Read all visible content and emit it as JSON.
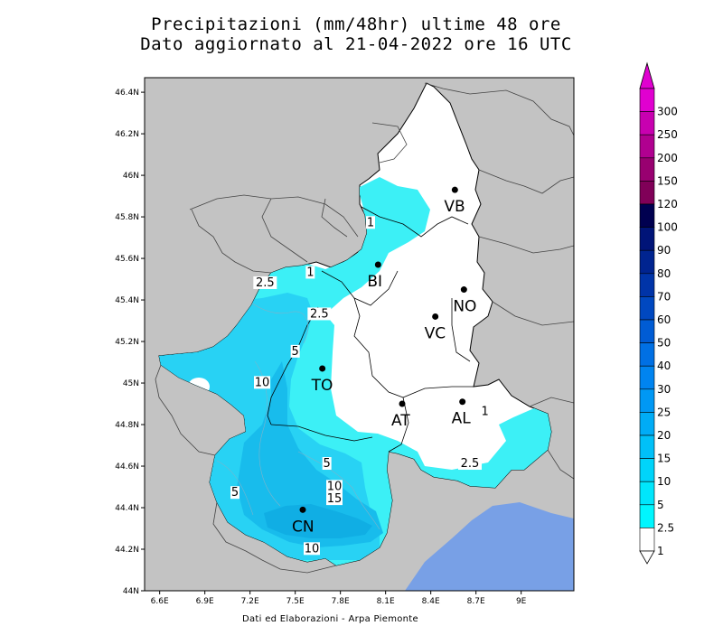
{
  "header": {
    "title_line1": "Precipitazioni (mm/48hr) ultime 48 ore",
    "title_line2": "Dato aggiornato al 21-04-2022 ore 16 UTC"
  },
  "footer": {
    "credit": "Dati ed Elaborazioni - Arpa Piemonte"
  },
  "map": {
    "lat_ticks": [
      "46.4N",
      "46.2N",
      "46N",
      "45.8N",
      "45.6N",
      "45.4N",
      "45.2N",
      "45N",
      "44.8N",
      "44.6N",
      "44.4N",
      "44.2N",
      "44N"
    ],
    "lon_ticks": [
      "6.6E",
      "6.9E",
      "7.2E",
      "7.5E",
      "7.8E",
      "8.1E",
      "8.4E",
      "8.7E",
      "9E"
    ],
    "cities": [
      {
        "code": "VB",
        "lon": 8.56,
        "lat": 45.93
      },
      {
        "code": "BI",
        "lon": 8.05,
        "lat": 45.57
      },
      {
        "code": "NO",
        "lon": 8.62,
        "lat": 45.45
      },
      {
        "code": "VC",
        "lon": 8.43,
        "lat": 45.32
      },
      {
        "code": "TO",
        "lon": 7.68,
        "lat": 45.07
      },
      {
        "code": "AT",
        "lon": 8.21,
        "lat": 44.9
      },
      {
        "code": "AL",
        "lon": 8.61,
        "lat": 44.91
      },
      {
        "code": "CN",
        "lon": 7.55,
        "lat": 44.39
      }
    ],
    "contour_labels": [
      {
        "text": "1",
        "lon": 8.0,
        "lat": 45.76
      },
      {
        "text": "1",
        "lon": 7.6,
        "lat": 45.52
      },
      {
        "text": "2.5",
        "lon": 7.3,
        "lat": 45.47
      },
      {
        "text": "2.5",
        "lon": 7.66,
        "lat": 45.32
      },
      {
        "text": "5",
        "lon": 7.5,
        "lat": 45.14
      },
      {
        "text": "10",
        "lon": 7.28,
        "lat": 44.99
      },
      {
        "text": "5",
        "lon": 7.71,
        "lat": 44.6
      },
      {
        "text": "10",
        "lon": 7.76,
        "lat": 44.49
      },
      {
        "text": "15",
        "lon": 7.76,
        "lat": 44.43
      },
      {
        "text": "5",
        "lon": 7.1,
        "lat": 44.46
      },
      {
        "text": "10",
        "lon": 7.61,
        "lat": 44.19
      },
      {
        "text": "1",
        "lon": 8.76,
        "lat": 44.85
      },
      {
        "text": "2.5",
        "lon": 8.66,
        "lat": 44.6
      }
    ]
  },
  "legend": {
    "levels": [
      {
        "label": "300",
        "color": "#e000d0"
      },
      {
        "label": "250",
        "color": "#c800b0"
      },
      {
        "label": "200",
        "color": "#b00090"
      },
      {
        "label": "150",
        "color": "#980070"
      },
      {
        "label": "120",
        "color": "#800058"
      },
      {
        "label": "100",
        "color": "#000050"
      },
      {
        "label": "90",
        "color": "#001478"
      },
      {
        "label": "80",
        "color": "#002490"
      },
      {
        "label": "70",
        "color": "#0034a8"
      },
      {
        "label": "60",
        "color": "#0048c0"
      },
      {
        "label": "50",
        "color": "#005cd4"
      },
      {
        "label": "40",
        "color": "#0070e4"
      },
      {
        "label": "30",
        "color": "#0084f0"
      },
      {
        "label": "25",
        "color": "#0098f4"
      },
      {
        "label": "20",
        "color": "#00acf6"
      },
      {
        "label": "15",
        "color": "#00c0f8"
      },
      {
        "label": "10",
        "color": "#00d4fa"
      },
      {
        "label": "5",
        "color": "#00e6fc"
      },
      {
        "label": "2.5",
        "color": "#00f6fe"
      },
      {
        "label": "1",
        "color": "#ffffff"
      }
    ]
  },
  "colors": {
    "background_outside": "#c3c3c3",
    "sea": "#78a0e6",
    "no_rain": "#ffffff",
    "light": "#3cf0f6",
    "medium": "#28d2f4",
    "heavy": "#18bcec"
  }
}
